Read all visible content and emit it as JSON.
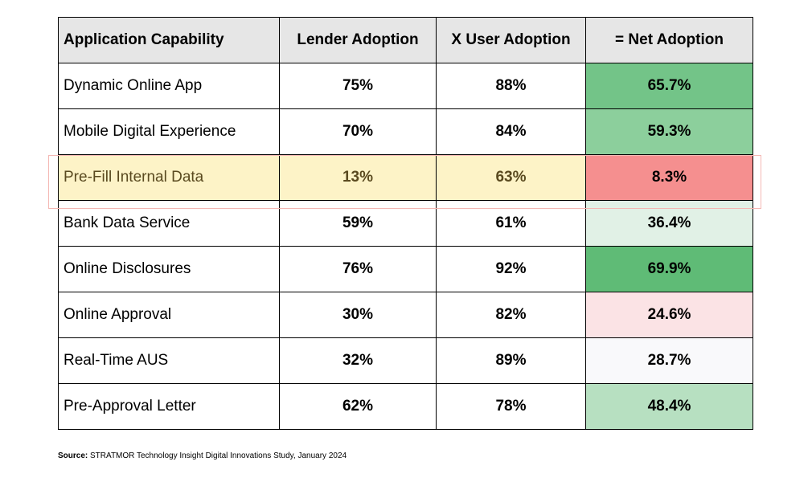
{
  "table": {
    "headers": [
      "Application Capability",
      "Lender Adoption",
      "X User Adoption",
      "= Net Adoption"
    ],
    "rows": [
      {
        "name": "Dynamic Online App",
        "lender": "75%",
        "user": "88%",
        "net": "65.7%",
        "net_color": "#73c488"
      },
      {
        "name": "Mobile Digital Experience",
        "lender": "70%",
        "user": "84%",
        "net": "59.3%",
        "net_color": "#8ccf9c"
      },
      {
        "name": "Pre-Fill Internal Data",
        "lender": "13%",
        "user": "63%",
        "net": "8.3%",
        "net_color": "#f58f8f",
        "highlighted": true
      },
      {
        "name": "Bank Data Service",
        "lender": "59%",
        "user": "61%",
        "net": "36.4%",
        "net_color": "#e1f1e6"
      },
      {
        "name": "Online Disclosures",
        "lender": "76%",
        "user": "92%",
        "net": "69.9%",
        "net_color": "#5fbb76"
      },
      {
        "name": "Online Approval",
        "lender": "30%",
        "user": "82%",
        "net": "24.6%",
        "net_color": "#fbe3e5"
      },
      {
        "name": "Real-Time AUS",
        "lender": "32%",
        "user": "89%",
        "net": "28.7%",
        "net_color": "#f9f9fb"
      },
      {
        "name": "Pre-Approval Letter",
        "lender": "62%",
        "user": "78%",
        "net": "48.4%",
        "net_color": "#b7e0c1"
      }
    ]
  },
  "highlight_row_fill": "#fdf3c7",
  "highlight_text_color": "#5a4a20",
  "source": {
    "label": "Source:",
    "text": " STRATMOR Technology Insight Digital Innovations Study, January 2024"
  },
  "chart_data": {
    "type": "table",
    "columns": [
      "Application Capability",
      "Lender Adoption",
      "X User Adoption",
      "= Net Adoption"
    ],
    "rows": [
      [
        "Dynamic Online App",
        75,
        88,
        65.7
      ],
      [
        "Mobile Digital Experience",
        70,
        84,
        59.3
      ],
      [
        "Pre-Fill Internal Data",
        13,
        63,
        8.3
      ],
      [
        "Bank Data Service",
        59,
        61,
        36.4
      ],
      [
        "Online Disclosures",
        76,
        92,
        69.9
      ],
      [
        "Online Approval",
        30,
        82,
        24.6
      ],
      [
        "Real-Time AUS",
        32,
        89,
        28.7
      ],
      [
        "Pre-Approval Letter",
        62,
        78,
        48.4
      ]
    ]
  }
}
